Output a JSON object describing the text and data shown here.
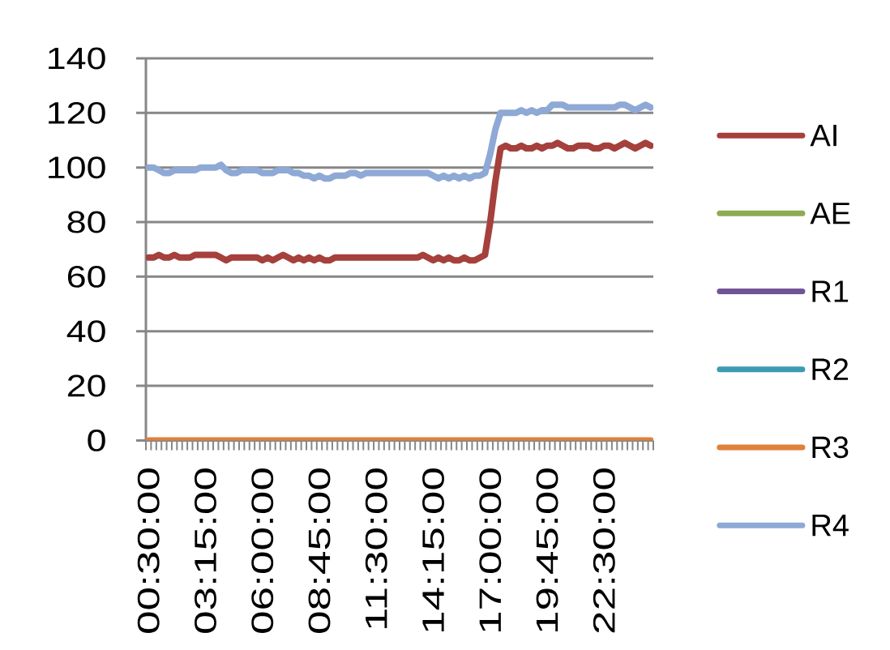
{
  "chart_data": {
    "type": "line",
    "categories": [
      "00:30:00",
      null,
      null,
      null,
      null,
      null,
      null,
      null,
      null,
      null,
      null,
      "03:15:00",
      null,
      null,
      null,
      null,
      null,
      null,
      null,
      null,
      null,
      null,
      "06:00:00",
      null,
      null,
      null,
      null,
      null,
      null,
      null,
      null,
      null,
      null,
      "08:45:00",
      null,
      null,
      null,
      null,
      null,
      null,
      null,
      null,
      null,
      null,
      "11:30:00",
      null,
      null,
      null,
      null,
      null,
      null,
      null,
      null,
      null,
      null,
      "14:15:00",
      null,
      null,
      null,
      null,
      null,
      null,
      null,
      null,
      null,
      null,
      "17:00:00",
      null,
      null,
      null,
      null,
      null,
      null,
      null,
      null,
      null,
      null,
      "19:45:00",
      null,
      null,
      null,
      null,
      null,
      null,
      null,
      null,
      null,
      null,
      "22:30:00",
      null,
      null,
      null,
      null,
      null,
      null,
      null,
      null,
      null
    ],
    "series": [
      {
        "name": "AI",
        "color": "#a5403d",
        "values": [
          67,
          67,
          68,
          67,
          67,
          68,
          67,
          67,
          67,
          68,
          68,
          68,
          68,
          68,
          67,
          66,
          67,
          67,
          67,
          67,
          67,
          67,
          66,
          67,
          66,
          67,
          68,
          67,
          66,
          67,
          66,
          67,
          66,
          67,
          66,
          66,
          67,
          67,
          67,
          67,
          67,
          67,
          67,
          67,
          67,
          67,
          67,
          67,
          67,
          67,
          67,
          67,
          67,
          68,
          67,
          66,
          67,
          66,
          67,
          66,
          66,
          67,
          66,
          66,
          67,
          68,
          80,
          95,
          107,
          108,
          107,
          107,
          108,
          107,
          107,
          108,
          107,
          108,
          108,
          109,
          108,
          107,
          107,
          108,
          108,
          108,
          107,
          107,
          108,
          108,
          107,
          108,
          109,
          108,
          107,
          108,
          109,
          108
        ]
      },
      {
        "name": "AE",
        "color": "#8fab52",
        "values": [
          null,
          null,
          null,
          null,
          null,
          null,
          null,
          null,
          null,
          null,
          null,
          null,
          null,
          null,
          null,
          null,
          null,
          null,
          null,
          null,
          null,
          null,
          null,
          null,
          null,
          null,
          null,
          null,
          null,
          null,
          null,
          null,
          null,
          null,
          null,
          null,
          null,
          null,
          null,
          null,
          null,
          null,
          null,
          null,
          null,
          null,
          null,
          null,
          null,
          null,
          null,
          null,
          null,
          null,
          null,
          null,
          null,
          null,
          null,
          null,
          null,
          null,
          null,
          null,
          null,
          null,
          null,
          null,
          null,
          null,
          null,
          null,
          null,
          null,
          null,
          null,
          null,
          null,
          null,
          null,
          null,
          null,
          null,
          null,
          null,
          null,
          null,
          null,
          null,
          null,
          null,
          null,
          null,
          null,
          null,
          null,
          null,
          null
        ]
      },
      {
        "name": "R1",
        "color": "#705596",
        "values": [
          null,
          null,
          null,
          null,
          null,
          null,
          null,
          null,
          null,
          null,
          null,
          null,
          null,
          null,
          null,
          null,
          null,
          null,
          null,
          null,
          null,
          null,
          null,
          null,
          null,
          null,
          null,
          null,
          null,
          null,
          null,
          null,
          null,
          null,
          null,
          null,
          null,
          null,
          null,
          null,
          null,
          null,
          null,
          null,
          null,
          null,
          null,
          null,
          null,
          null,
          null,
          null,
          null,
          null,
          null,
          null,
          null,
          null,
          null,
          null,
          null,
          null,
          null,
          null,
          null,
          null,
          null,
          null,
          null,
          null,
          null,
          null,
          null,
          null,
          null,
          null,
          null,
          null,
          null,
          null,
          null,
          null,
          null,
          null,
          null,
          null,
          null,
          null,
          null,
          null,
          null,
          null,
          null,
          null,
          null,
          null,
          null,
          null
        ]
      },
      {
        "name": "R2",
        "color": "#3e9ab3",
        "values": [
          null,
          null,
          null,
          null,
          null,
          null,
          null,
          null,
          null,
          null,
          null,
          null,
          null,
          null,
          null,
          null,
          null,
          null,
          null,
          null,
          null,
          null,
          null,
          null,
          null,
          null,
          null,
          null,
          null,
          null,
          null,
          null,
          null,
          null,
          null,
          null,
          null,
          null,
          null,
          null,
          null,
          null,
          null,
          null,
          null,
          null,
          null,
          null,
          null,
          null,
          null,
          null,
          null,
          null,
          null,
          null,
          null,
          null,
          null,
          null,
          null,
          null,
          null,
          null,
          null,
          null,
          null,
          null,
          null,
          null,
          null,
          null,
          null,
          null,
          null,
          null,
          null,
          null,
          null,
          null,
          null,
          null,
          null,
          null,
          null,
          null,
          null,
          null,
          null,
          null,
          null,
          null,
          null,
          null,
          null,
          null,
          null,
          null
        ]
      },
      {
        "name": "R3",
        "color": "#e0803a",
        "values": [
          0,
          0,
          0,
          0,
          0,
          0,
          0,
          0,
          0,
          0,
          0,
          0,
          0,
          0,
          0,
          0,
          0,
          0,
          0,
          0,
          0,
          0,
          0,
          0,
          0,
          0,
          0,
          0,
          0,
          0,
          0,
          0,
          0,
          0,
          0,
          0,
          0,
          0,
          0,
          0,
          0,
          0,
          0,
          0,
          0,
          0,
          0,
          0,
          0,
          0,
          0,
          0,
          0,
          0,
          0,
          0,
          0,
          0,
          0,
          0,
          0,
          0,
          0,
          0,
          0,
          0,
          0,
          0,
          0,
          0,
          0,
          0,
          0,
          0,
          0,
          0,
          0,
          0,
          0,
          0,
          0,
          0,
          0,
          0,
          0,
          0,
          0,
          0,
          0,
          0,
          0,
          0,
          0,
          0,
          0,
          0,
          0,
          0
        ]
      },
      {
        "name": "R4",
        "color": "#8ea9d5",
        "values": [
          100,
          100,
          99,
          98,
          98,
          99,
          99,
          99,
          99,
          99,
          100,
          100,
          100,
          100,
          101,
          99,
          98,
          98,
          99,
          99,
          99,
          99,
          98,
          98,
          98,
          99,
          99,
          99,
          98,
          98,
          97,
          97,
          96,
          97,
          96,
          96,
          97,
          97,
          97,
          98,
          98,
          97,
          98,
          98,
          98,
          98,
          98,
          98,
          98,
          98,
          98,
          98,
          98,
          98,
          98,
          97,
          96,
          97,
          96,
          97,
          96,
          97,
          96,
          97,
          97,
          98,
          105,
          114,
          120,
          120,
          120,
          120,
          121,
          120,
          121,
          120,
          121,
          121,
          123,
          123,
          123,
          122,
          122,
          122,
          122,
          122,
          122,
          122,
          122,
          122,
          122,
          123,
          123,
          122,
          121,
          122,
          123,
          122
        ]
      }
    ],
    "ylim": [
      0,
      140
    ],
    "yticks": [
      0,
      20,
      40,
      60,
      80,
      100,
      120,
      140
    ],
    "grid": "y",
    "legend": "right"
  }
}
